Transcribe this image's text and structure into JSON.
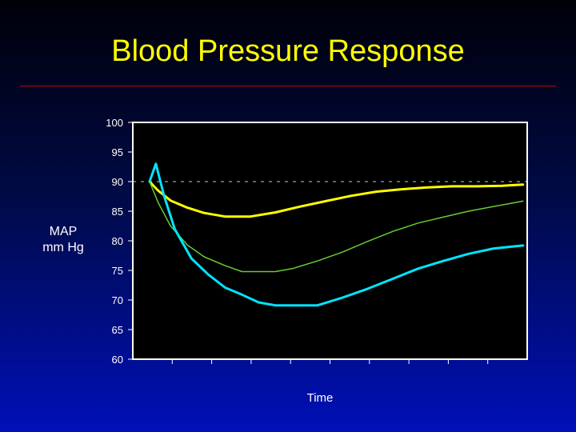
{
  "slide": {
    "title": "Blood Pressure Response",
    "title_color": "#ffff00",
    "divider_color": "#c00000"
  },
  "chart_data": {
    "type": "line",
    "title": "Blood Pressure Response",
    "ylabel": "MAP\nmm Hg",
    "xlabel": "Time",
    "ylim": [
      60,
      100
    ],
    "yticks": [
      60,
      65,
      70,
      75,
      80,
      85,
      90,
      95,
      100
    ],
    "xlim": [
      0,
      9.4
    ],
    "xtick_count": 10,
    "x_tick_labels_shown": false,
    "grid": false,
    "plot_background": "#000000",
    "reference_line": {
      "y": 90,
      "style": "dashed",
      "color": "#c8c8c8"
    },
    "series": [
      {
        "color": "#ffff00",
        "x": [
          0.4,
          0.6,
          0.9,
          1.3,
          1.7,
          2.2,
          2.8,
          3.4,
          4.0,
          4.6,
          5.2,
          5.8,
          6.4,
          7.0,
          7.6,
          8.2,
          8.8,
          9.3
        ],
        "y": [
          90,
          88.5,
          86.8,
          85.6,
          84.7,
          84.1,
          84.1,
          84.8,
          85.8,
          86.7,
          87.6,
          88.3,
          88.7,
          89.0,
          89.2,
          89.2,
          89.3,
          89.5
        ]
      },
      {
        "color": "#66cc33",
        "x": [
          0.4,
          0.6,
          0.9,
          1.3,
          1.7,
          2.2,
          2.6,
          3.0,
          3.4,
          3.8,
          4.4,
          5.0,
          5.6,
          6.2,
          6.8,
          7.4,
          8.0,
          8.6,
          9.3
        ],
        "y": [
          90,
          86.5,
          82.5,
          79.3,
          77.3,
          75.8,
          74.8,
          74.8,
          74.8,
          75.3,
          76.6,
          78.1,
          79.9,
          81.6,
          83.0,
          84.0,
          85.0,
          85.8,
          86.7
        ]
      },
      {
        "color": "#00e5ff",
        "x": [
          0.4,
          0.55,
          0.75,
          1.0,
          1.4,
          1.8,
          2.2,
          2.6,
          3.0,
          3.4,
          3.9,
          4.4,
          5.0,
          5.6,
          6.2,
          6.8,
          7.4,
          8.0,
          8.6,
          9.3
        ],
        "y": [
          90,
          93,
          87.5,
          82,
          77,
          74.3,
          72.1,
          70.9,
          69.6,
          69.1,
          69.1,
          69.1,
          70.4,
          71.9,
          73.6,
          75.3,
          76.6,
          77.8,
          78.7,
          79.2
        ]
      }
    ]
  }
}
